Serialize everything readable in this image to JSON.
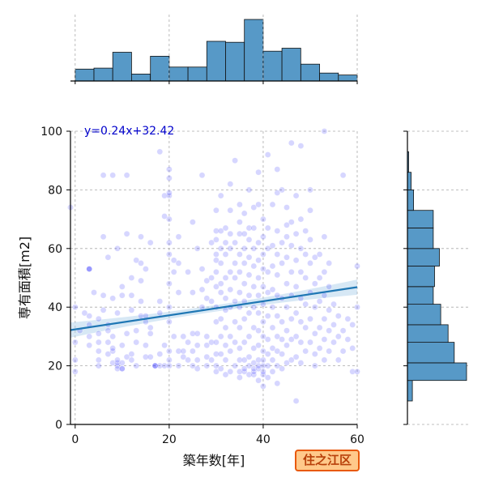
{
  "badge": {
    "label": "住之江区",
    "bg": "#ffc98a",
    "border": "#e8590c",
    "text_color": "#b8400a"
  },
  "chart_data": {
    "type": "scatter",
    "title": "",
    "xlabel": "築年数[年]",
    "ylabel": "専有面積[m2]",
    "xlim": [
      -1,
      60
    ],
    "ylim": [
      0,
      100
    ],
    "xticks": [
      0,
      20,
      40,
      60
    ],
    "yticks": [
      0,
      20,
      40,
      60,
      80,
      100
    ],
    "grid": true,
    "point_color": "#1a1aff",
    "point_alpha": 0.18,
    "regression": {
      "label": "y=0.24x+32.42",
      "slope": 0.24,
      "intercept": 32.42,
      "color": "#1f77b4",
      "ci_color": "#a6cde8",
      "ci_halfwidth_at_ends": 2.6,
      "ci_halfwidth_at_center": 1.1
    },
    "points": [
      [
        0,
        40
      ],
      [
        0,
        28
      ],
      [
        0,
        18
      ],
      [
        0,
        22
      ],
      [
        -1,
        74
      ],
      [
        3,
        37
      ],
      [
        3,
        34
      ],
      [
        3,
        30
      ],
      [
        3,
        27
      ],
      [
        3,
        53
      ],
      [
        3,
        53
      ],
      [
        3,
        53
      ],
      [
        5,
        28
      ],
      [
        5,
        25
      ],
      [
        5,
        22
      ],
      [
        5,
        20
      ],
      [
        5,
        31
      ],
      [
        5,
        36
      ],
      [
        6,
        39
      ],
      [
        6,
        44
      ],
      [
        6,
        85
      ],
      [
        7,
        24
      ],
      [
        7,
        28
      ],
      [
        7,
        32
      ],
      [
        7,
        34
      ],
      [
        8,
        25
      ],
      [
        8,
        21
      ],
      [
        8,
        26
      ],
      [
        8,
        30
      ],
      [
        8,
        85
      ],
      [
        8,
        43
      ],
      [
        9,
        20
      ],
      [
        9,
        19
      ],
      [
        9,
        21
      ],
      [
        9,
        22
      ],
      [
        9,
        38
      ],
      [
        10,
        19
      ],
      [
        10,
        19
      ],
      [
        10,
        21
      ],
      [
        10,
        27
      ],
      [
        10,
        44
      ],
      [
        10,
        47
      ],
      [
        11,
        31
      ],
      [
        11,
        23
      ],
      [
        11,
        85
      ],
      [
        12,
        24
      ],
      [
        12,
        22
      ],
      [
        12,
        44
      ],
      [
        12,
        50
      ],
      [
        12,
        39
      ],
      [
        13,
        20
      ],
      [
        13,
        28
      ],
      [
        13,
        32
      ],
      [
        14,
        37
      ],
      [
        14,
        42
      ],
      [
        14,
        55
      ],
      [
        14,
        49
      ],
      [
        15,
        27
      ],
      [
        15,
        23
      ],
      [
        15,
        35
      ],
      [
        15,
        37
      ],
      [
        15,
        53
      ],
      [
        16,
        33
      ],
      [
        16,
        31
      ],
      [
        16,
        23
      ],
      [
        17,
        20
      ],
      [
        17,
        20
      ],
      [
        17,
        20
      ],
      [
        18,
        93
      ],
      [
        18,
        24
      ],
      [
        18,
        20
      ],
      [
        18,
        38
      ],
      [
        18,
        42
      ],
      [
        19,
        20
      ],
      [
        19,
        27
      ],
      [
        19,
        78
      ],
      [
        20,
        84
      ],
      [
        20,
        87
      ],
      [
        20,
        78
      ],
      [
        20,
        79
      ],
      [
        20,
        62
      ],
      [
        20,
        58
      ],
      [
        20,
        70
      ],
      [
        20,
        48
      ],
      [
        20,
        40
      ],
      [
        20,
        35
      ],
      [
        20,
        25
      ],
      [
        20,
        22
      ],
      [
        20,
        20
      ],
      [
        21,
        56
      ],
      [
        21,
        52
      ],
      [
        21,
        30
      ],
      [
        22,
        55
      ],
      [
        22,
        45
      ],
      [
        22,
        25
      ],
      [
        22,
        20
      ],
      [
        23,
        23
      ],
      [
        23,
        25
      ],
      [
        23,
        30
      ],
      [
        24,
        28
      ],
      [
        24,
        22
      ],
      [
        25,
        25
      ],
      [
        25,
        20
      ],
      [
        25,
        31
      ],
      [
        25,
        69
      ],
      [
        26,
        19
      ],
      [
        26,
        22
      ],
      [
        26,
        27
      ],
      [
        26,
        31
      ],
      [
        27,
        40
      ],
      [
        27,
        46
      ],
      [
        27,
        53
      ],
      [
        27,
        85
      ],
      [
        28,
        20
      ],
      [
        28,
        23
      ],
      [
        28,
        27
      ],
      [
        28,
        30
      ],
      [
        28,
        43
      ],
      [
        28,
        49
      ],
      [
        29,
        22
      ],
      [
        29,
        28
      ],
      [
        29,
        42
      ],
      [
        29,
        50
      ],
      [
        29,
        62
      ],
      [
        30,
        18
      ],
      [
        30,
        20
      ],
      [
        30,
        24
      ],
      [
        30,
        28
      ],
      [
        30,
        35
      ],
      [
        30,
        40
      ],
      [
        30,
        47
      ],
      [
        30,
        52
      ],
      [
        30,
        56
      ],
      [
        30,
        58
      ],
      [
        30,
        63
      ],
      [
        30,
        66
      ],
      [
        31,
        19
      ],
      [
        31,
        24
      ],
      [
        31,
        30
      ],
      [
        31,
        36
      ],
      [
        31,
        45
      ],
      [
        31,
        48
      ],
      [
        31,
        55
      ],
      [
        31,
        60
      ],
      [
        31,
        66
      ],
      [
        32,
        17
      ],
      [
        32,
        22
      ],
      [
        32,
        27
      ],
      [
        32,
        33
      ],
      [
        32,
        39
      ],
      [
        32,
        43
      ],
      [
        32,
        50
      ],
      [
        32,
        58
      ],
      [
        32,
        62
      ],
      [
        32,
        67
      ],
      [
        33,
        18
      ],
      [
        33,
        25
      ],
      [
        33,
        30
      ],
      [
        33,
        40
      ],
      [
        33,
        46
      ],
      [
        33,
        52
      ],
      [
        33,
        60
      ],
      [
        33,
        65
      ],
      [
        33,
        73
      ],
      [
        34,
        20
      ],
      [
        34,
        28
      ],
      [
        34,
        35
      ],
      [
        34,
        42
      ],
      [
        34,
        50
      ],
      [
        34,
        55
      ],
      [
        34,
        62
      ],
      [
        34,
        90
      ],
      [
        35,
        16
      ],
      [
        35,
        18
      ],
      [
        35,
        22
      ],
      [
        35,
        26
      ],
      [
        35,
        33
      ],
      [
        35,
        40
      ],
      [
        35,
        45
      ],
      [
        35,
        52
      ],
      [
        35,
        58
      ],
      [
        35,
        65
      ],
      [
        35,
        69
      ],
      [
        36,
        18
      ],
      [
        36,
        19
      ],
      [
        36,
        22
      ],
      [
        36,
        28
      ],
      [
        36,
        36
      ],
      [
        36,
        42
      ],
      [
        36,
        48
      ],
      [
        36,
        55
      ],
      [
        36,
        60
      ],
      [
        36,
        65
      ],
      [
        36,
        72
      ],
      [
        37,
        17
      ],
      [
        37,
        20
      ],
      [
        37,
        23
      ],
      [
        37,
        30
      ],
      [
        37,
        38
      ],
      [
        37,
        44
      ],
      [
        37,
        51
      ],
      [
        37,
        57
      ],
      [
        37,
        63
      ],
      [
        37,
        67
      ],
      [
        38,
        17
      ],
      [
        38,
        18
      ],
      [
        38,
        19
      ],
      [
        38,
        21
      ],
      [
        38,
        26
      ],
      [
        38,
        33
      ],
      [
        38,
        40
      ],
      [
        38,
        47
      ],
      [
        38,
        54
      ],
      [
        38,
        60
      ],
      [
        38,
        67
      ],
      [
        38,
        74
      ],
      [
        39,
        15
      ],
      [
        39,
        19
      ],
      [
        39,
        20
      ],
      [
        39,
        22
      ],
      [
        39,
        27
      ],
      [
        39,
        32
      ],
      [
        39,
        38
      ],
      [
        39,
        44
      ],
      [
        39,
        50
      ],
      [
        39,
        56
      ],
      [
        39,
        62
      ],
      [
        39,
        75
      ],
      [
        39,
        86
      ],
      [
        40,
        13
      ],
      [
        40,
        17
      ],
      [
        40,
        18
      ],
      [
        40,
        20
      ],
      [
        40,
        22
      ],
      [
        40,
        25
      ],
      [
        40,
        30
      ],
      [
        40,
        35
      ],
      [
        40,
        41
      ],
      [
        40,
        47
      ],
      [
        40,
        53
      ],
      [
        40,
        58
      ],
      [
        40,
        64
      ],
      [
        40,
        70
      ],
      [
        41,
        16
      ],
      [
        41,
        20
      ],
      [
        41,
        24
      ],
      [
        41,
        29
      ],
      [
        41,
        37
      ],
      [
        41,
        45
      ],
      [
        41,
        52
      ],
      [
        41,
        60
      ],
      [
        41,
        67
      ],
      [
        42,
        18
      ],
      [
        42,
        22
      ],
      [
        42,
        26
      ],
      [
        42,
        33
      ],
      [
        42,
        40
      ],
      [
        42,
        46
      ],
      [
        42,
        54
      ],
      [
        42,
        61
      ],
      [
        42,
        75
      ],
      [
        43,
        14
      ],
      [
        43,
        20
      ],
      [
        43,
        25
      ],
      [
        43,
        30
      ],
      [
        43,
        37
      ],
      [
        43,
        44
      ],
      [
        43,
        51
      ],
      [
        43,
        58
      ],
      [
        43,
        66
      ],
      [
        43,
        79
      ],
      [
        44,
        19
      ],
      [
        44,
        24
      ],
      [
        44,
        29
      ],
      [
        44,
        35
      ],
      [
        44,
        43
      ],
      [
        44,
        55
      ],
      [
        44,
        62
      ],
      [
        44,
        80
      ],
      [
        45,
        21
      ],
      [
        45,
        27
      ],
      [
        45,
        32
      ],
      [
        45,
        40
      ],
      [
        45,
        48
      ],
      [
        45,
        57
      ],
      [
        45,
        64
      ],
      [
        45,
        74
      ],
      [
        46,
        22
      ],
      [
        46,
        29
      ],
      [
        46,
        36
      ],
      [
        46,
        44
      ],
      [
        46,
        52
      ],
      [
        46,
        61
      ],
      [
        46,
        96
      ],
      [
        46,
        69
      ],
      [
        47,
        23
      ],
      [
        47,
        30
      ],
      [
        47,
        38
      ],
      [
        47,
        47
      ],
      [
        47,
        56
      ],
      [
        47,
        65
      ],
      [
        47,
        8
      ],
      [
        48,
        21
      ],
      [
        48,
        28
      ],
      [
        48,
        35
      ],
      [
        48,
        43
      ],
      [
        48,
        52
      ],
      [
        48,
        60
      ],
      [
        48,
        70
      ],
      [
        48,
        95
      ],
      [
        49,
        25
      ],
      [
        49,
        33
      ],
      [
        49,
        41
      ],
      [
        49,
        50
      ],
      [
        49,
        58
      ],
      [
        49,
        66
      ],
      [
        50,
        28
      ],
      [
        50,
        36
      ],
      [
        50,
        45
      ],
      [
        50,
        55
      ],
      [
        50,
        63
      ],
      [
        50,
        73
      ],
      [
        51,
        24
      ],
      [
        51,
        31
      ],
      [
        51,
        40
      ],
      [
        51,
        48
      ],
      [
        51,
        57
      ],
      [
        51,
        20
      ],
      [
        52,
        26
      ],
      [
        52,
        33
      ],
      [
        52,
        42
      ],
      [
        52,
        50
      ],
      [
        52,
        58
      ],
      [
        53,
        22
      ],
      [
        53,
        29
      ],
      [
        53,
        36
      ],
      [
        53,
        44
      ],
      [
        53,
        52
      ],
      [
        53,
        100
      ],
      [
        54,
        25
      ],
      [
        54,
        32
      ],
      [
        54,
        39
      ],
      [
        54,
        47
      ],
      [
        54,
        55
      ],
      [
        55,
        28
      ],
      [
        55,
        34
      ],
      [
        55,
        41
      ],
      [
        56,
        22
      ],
      [
        56,
        30
      ],
      [
        56,
        37
      ],
      [
        57,
        25
      ],
      [
        57,
        32
      ],
      [
        57,
        85
      ],
      [
        58,
        29
      ],
      [
        58,
        36
      ],
      [
        59,
        26
      ],
      [
        59,
        18
      ],
      [
        60,
        40
      ],
      [
        60,
        54
      ],
      [
        60,
        18
      ],
      [
        59,
        34
      ],
      [
        53,
        64
      ],
      [
        50,
        80
      ],
      [
        47,
        78
      ],
      [
        45,
        68
      ],
      [
        43,
        87
      ],
      [
        41,
        92
      ],
      [
        37,
        80
      ],
      [
        35,
        75
      ],
      [
        33,
        82
      ],
      [
        31,
        78
      ],
      [
        30,
        73
      ],
      [
        26,
        60
      ],
      [
        25,
        45
      ],
      [
        24,
        52
      ],
      [
        22,
        64
      ],
      [
        19,
        71
      ],
      [
        16,
        62
      ],
      [
        14,
        64
      ],
      [
        13,
        56
      ],
      [
        11,
        65
      ],
      [
        9,
        60
      ],
      [
        7,
        57
      ],
      [
        6,
        64
      ],
      [
        4,
        45
      ],
      [
        2,
        38
      ],
      [
        1,
        32
      ]
    ],
    "top_histogram": {
      "color": "#5799c7",
      "edges": [
        0,
        4,
        8,
        12,
        16,
        20,
        24,
        28,
        32,
        36,
        40,
        44,
        48,
        52,
        56,
        60
      ],
      "counts": [
        12,
        13,
        29,
        7,
        25,
        14,
        14,
        40,
        39,
        62,
        30,
        33,
        17,
        8,
        6
      ]
    },
    "right_histogram": {
      "color": "#5799c7",
      "edges": [
        8,
        15,
        21,
        28,
        34,
        41,
        47,
        54,
        60,
        67,
        73,
        80,
        86,
        93,
        100
      ],
      "counts": [
        4,
        48,
        38,
        33,
        27,
        21,
        22,
        26,
        21,
        21,
        5,
        3,
        1,
        0
      ]
    }
  }
}
